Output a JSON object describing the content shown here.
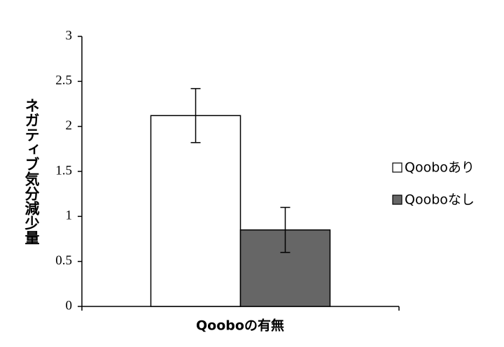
{
  "chart_data": {
    "type": "bar",
    "xlabel": "Qooboの有無",
    "ylabel": "ネガティブ気分減少量",
    "categories": [
      null
    ],
    "series": [
      {
        "name": "Qooboあり",
        "color": "#ffffff",
        "values": [
          2.12
        ],
        "errors": [
          0.3
        ]
      },
      {
        "name": "Qooboなし",
        "color": "#666666",
        "values": [
          0.85
        ],
        "errors": [
          0.25
        ]
      }
    ],
    "ylim": [
      0,
      3
    ],
    "yticks": [
      0,
      0.5,
      1,
      1.5,
      2,
      2.5,
      3
    ],
    "legend": "right"
  }
}
